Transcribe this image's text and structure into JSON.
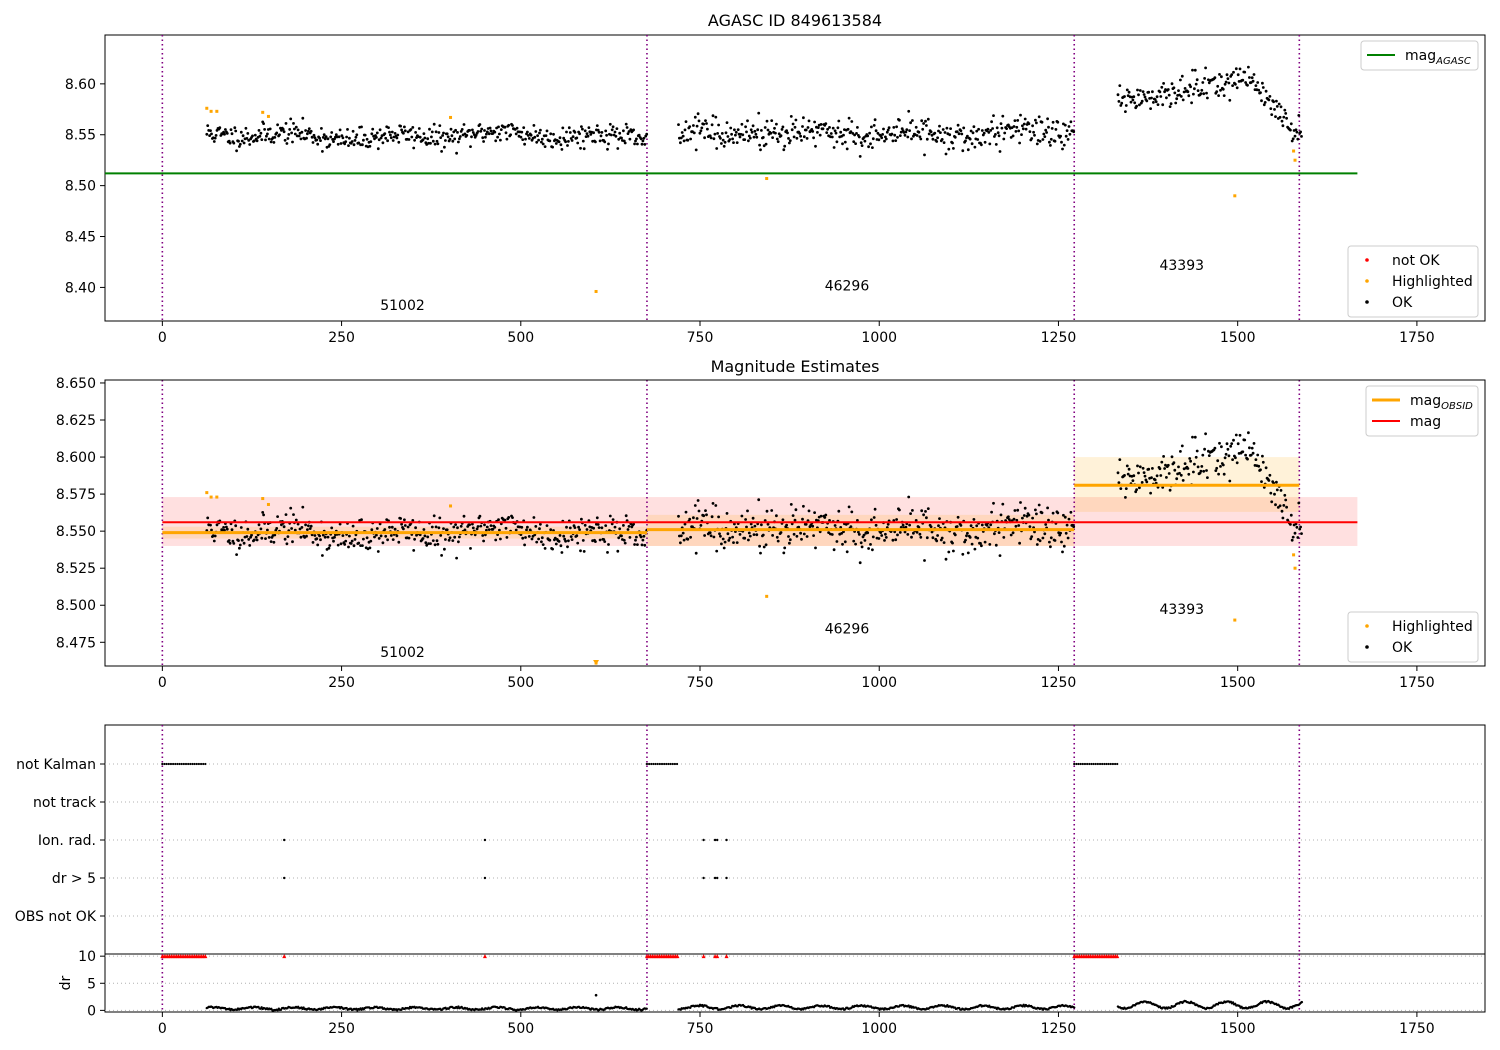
{
  "chart_data": [
    {
      "id": "top",
      "type": "scatter",
      "title": "AGASC ID 849613584",
      "xlim": [
        -80,
        1845
      ],
      "ylim": [
        8.367,
        8.648
      ],
      "xticks": [
        0,
        250,
        500,
        750,
        1000,
        1250,
        1500,
        1750
      ],
      "yticks": [
        8.4,
        8.45,
        8.5,
        8.55,
        8.6
      ],
      "ytick_labels": [
        "8.40",
        "8.45",
        "8.50",
        "8.55",
        "8.60"
      ],
      "obs_boundaries": [
        0,
        676,
        1272,
        1586
      ],
      "obs_labels": [
        {
          "text": "51002",
          "x": 335,
          "y": 8.378
        },
        {
          "text": "46296",
          "x": 955,
          "y": 8.397
        },
        {
          "text": "43393",
          "x": 1422,
          "y": 8.417
        }
      ],
      "hline": {
        "name": "mag_AGASC",
        "y": 8.512,
        "x_range": [
          -80,
          1667
        ],
        "color": "#008000"
      },
      "highlighted": [
        [
          62,
          8.576
        ],
        [
          68,
          8.573
        ],
        [
          76,
          8.573
        ],
        [
          140,
          8.572
        ],
        [
          148,
          8.568
        ],
        [
          402,
          8.567
        ],
        [
          605,
          8.396
        ],
        [
          843,
          8.507
        ],
        [
          1496,
          8.49
        ],
        [
          1578,
          8.534
        ],
        [
          1580,
          8.525
        ]
      ],
      "segments": [
        {
          "x_range": [
            62,
            676
          ],
          "mean": 8.549,
          "sd": 0.0055
        },
        {
          "x_range": [
            720,
            1272
          ],
          "mean": 8.551,
          "sd": 0.0075
        },
        {
          "x_range": [
            1333,
            1590
          ],
          "mean": 8.585,
          "sd": 0.01
        }
      ],
      "legends": [
        {
          "items": [
            {
              "label": "mag",
              "subscript": "AGASC",
              "kind": "line",
              "color": "#008000"
            }
          ]
        },
        {
          "items": [
            {
              "label": "not OK",
              "kind": "dot",
              "color": "#ff0000"
            },
            {
              "label": "Highlighted",
              "kind": "dot",
              "color": "#ffa500"
            },
            {
              "label": "OK",
              "kind": "dot",
              "color": "#000000"
            }
          ]
        }
      ]
    },
    {
      "id": "mid",
      "type": "scatter",
      "title": "Magnitude Estimates",
      "xlim": [
        -80,
        1845
      ],
      "ylim": [
        8.459,
        8.652
      ],
      "xticks": [
        0,
        250,
        500,
        750,
        1000,
        1250,
        1500,
        1750
      ],
      "yticks": [
        8.475,
        8.5,
        8.525,
        8.55,
        8.575,
        8.6,
        8.625,
        8.65
      ],
      "ytick_labels": [
        "8.475",
        "8.500",
        "8.525",
        "8.550",
        "8.575",
        "8.600",
        "8.625",
        "8.650"
      ],
      "obs_boundaries": [
        0,
        676,
        1272,
        1586
      ],
      "obs_labels": [
        {
          "text": "51002",
          "x": 335,
          "y": 8.465
        },
        {
          "text": "46296",
          "x": 955,
          "y": 8.481
        },
        {
          "text": "43393",
          "x": 1422,
          "y": 8.494
        }
      ],
      "mag_line": {
        "name": "mag",
        "y": 8.556,
        "band": [
          8.54,
          8.573
        ],
        "x_range": [
          0,
          1667
        ],
        "color": "#ff0000"
      },
      "obsid_mags": [
        {
          "x_range": [
            0,
            676
          ],
          "y": 8.549,
          "band": [
            8.545,
            8.553
          ]
        },
        {
          "x_range": [
            676,
            1272
          ],
          "y": 8.551,
          "band": [
            8.54,
            8.561
          ]
        },
        {
          "x_range": [
            1272,
            1586
          ],
          "y": 8.581,
          "band": [
            8.563,
            8.6
          ]
        }
      ],
      "highlighted": [
        [
          62,
          8.576
        ],
        [
          68,
          8.573
        ],
        [
          76,
          8.573
        ],
        [
          140,
          8.572
        ],
        [
          148,
          8.568
        ],
        [
          402,
          8.567
        ],
        [
          605,
          8.461
        ],
        [
          843,
          8.506
        ],
        [
          1496,
          8.49
        ],
        [
          1578,
          8.534
        ],
        [
          1580,
          8.525
        ]
      ],
      "segments": [
        {
          "x_range": [
            62,
            676
          ],
          "mean": 8.549,
          "sd": 0.0055
        },
        {
          "x_range": [
            720,
            1272
          ],
          "mean": 8.551,
          "sd": 0.0075
        },
        {
          "x_range": [
            1333,
            1590
          ],
          "mean": 8.585,
          "sd": 0.01
        }
      ],
      "legends": [
        {
          "items": [
            {
              "label": "mag",
              "subscript": "OBSID",
              "kind": "thickline",
              "color": "#ffa500"
            },
            {
              "label": "mag",
              "kind": "line",
              "color": "#ff0000"
            }
          ]
        },
        {
          "items": [
            {
              "label": "Highlighted",
              "kind": "dot",
              "color": "#ffa500"
            },
            {
              "label": "OK",
              "kind": "dot",
              "color": "#000000"
            }
          ]
        }
      ]
    },
    {
      "id": "flags",
      "type": "scatter",
      "xlim": [
        -80,
        1845
      ],
      "categories": [
        "not Kalman",
        "not track",
        "Ion. rad.",
        "dr > 5",
        "OBS not OK"
      ],
      "obs_boundaries": [
        0,
        676,
        1272,
        1586
      ],
      "flag_points": {
        "not Kalman": [
          [
            0,
            62
          ],
          [
            676,
            720
          ],
          [
            1272,
            1333
          ]
        ],
        "not track": [],
        "Ion. rad.": [
          170,
          450,
          755,
          771,
          774,
          787
        ],
        "dr > 5": [
          170,
          450,
          755,
          771,
          774,
          787
        ],
        "OBS not OK": []
      }
    },
    {
      "id": "dr",
      "type": "scatter",
      "ylabel": "dr",
      "xlim": [
        -80,
        1845
      ],
      "ylim": [
        -0.3,
        10.4
      ],
      "yticks": [
        0,
        5,
        10
      ],
      "ytick_labels": [
        "0",
        "5",
        "10"
      ],
      "xticks": [
        0,
        250,
        500,
        750,
        1000,
        1250,
        1500,
        1750
      ],
      "obs_boundaries": [
        0,
        676,
        1272,
        1586
      ],
      "dr_segments": [
        {
          "x_range": [
            62,
            676
          ],
          "level": 0.35
        },
        {
          "x_range": [
            720,
            1272
          ],
          "level": 0.55
        },
        {
          "x_range": [
            1333,
            1590
          ],
          "level": 1.0
        }
      ],
      "dr_outlier": [
        605,
        2.8
      ],
      "red_markers": [
        [
          0,
          62
        ],
        [
          676,
          720
        ],
        [
          1272,
          1333
        ]
      ],
      "red_singles": [
        170,
        450,
        755,
        771,
        774,
        787
      ]
    }
  ]
}
